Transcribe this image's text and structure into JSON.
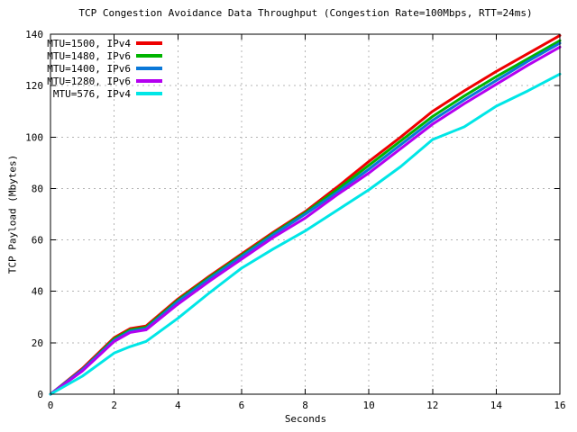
{
  "chart_data": {
    "type": "line",
    "title": "TCP Congestion Avoidance Data Throughput (Congestion Rate=100Mbps, RTT=24ms)",
    "xlabel": "Seconds",
    "ylabel": "TCP Payload (Mbytes)",
    "xlim": [
      0,
      16
    ],
    "ylim": [
      0,
      140
    ],
    "xticks": [
      0,
      2,
      4,
      6,
      8,
      10,
      12,
      14,
      16
    ],
    "yticks": [
      0,
      20,
      40,
      60,
      80,
      100,
      120,
      140
    ],
    "grid": true,
    "legend_position": "top-left-inside",
    "x": [
      0,
      1,
      2,
      2.5,
      3,
      4,
      5,
      6,
      7,
      8,
      9,
      10,
      11,
      12,
      13,
      14,
      15,
      16
    ],
    "series": [
      {
        "name": "MTU=1500, IPv4",
        "color": "#ee0000",
        "values": [
          0,
          10,
          22,
          25.5,
          26.5,
          37,
          46,
          54.5,
          63,
          71,
          80.5,
          90.5,
          100,
          110,
          118,
          125.5,
          132.5,
          139.5
        ]
      },
      {
        "name": "MTU=1480, IPv6",
        "color": "#00b400",
        "values": [
          0,
          9.5,
          21.5,
          25,
          26,
          36.5,
          45.5,
          54,
          62.5,
          70.5,
          79.5,
          89,
          98.5,
          108,
          116,
          123.5,
          130.5,
          137.5
        ]
      },
      {
        "name": "MTU=1400, IPv6",
        "color": "#0a78d8",
        "values": [
          0,
          9.5,
          21,
          24.5,
          25.5,
          36,
          45,
          53.5,
          62,
          70,
          78.5,
          87.5,
          97,
          106.5,
          114.5,
          122,
          129.5,
          136.5
        ]
      },
      {
        "name": "MTU=1280, IPv6",
        "color": "#b400f0",
        "values": [
          0,
          9,
          20.5,
          24,
          25,
          35,
          44,
          52.5,
          61,
          68.5,
          77.5,
          86,
          95.5,
          105,
          113,
          120.5,
          128,
          135
        ]
      },
      {
        "name": "MTU=576, IPv4",
        "color": "#00e6e6",
        "values": [
          0,
          7,
          16,
          18.5,
          20.5,
          29.5,
          39.5,
          49,
          56.5,
          63.5,
          71.5,
          79.5,
          88.5,
          99,
          104,
          112,
          118,
          124.5
        ]
      }
    ],
    "colors": {
      "background": "#ffffff",
      "border": "#000000",
      "grid": "#b4b4b4",
      "text": "#000000"
    }
  }
}
